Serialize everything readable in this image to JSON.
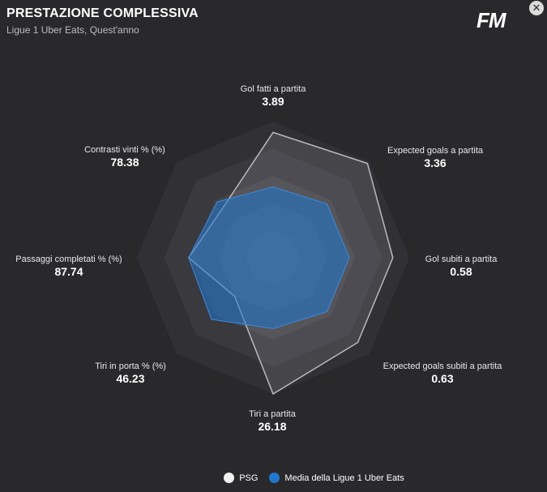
{
  "header": {
    "title": "PRESTAZIONE COMPLESSIVA",
    "subtitle": "Ligue 1 Uber Eats, Quest'anno"
  },
  "logo_text": "FM",
  "close_symbol": "✕",
  "chart_data": {
    "type": "radar",
    "title": "PRESTAZIONE COMPLESSIVA",
    "subtitle": "Ligue 1 Uber Eats, Quest'anno",
    "axes": [
      {
        "label": "Gol fatti a partita",
        "value": "3.89"
      },
      {
        "label": "Expected goals a partita",
        "value": "3.36"
      },
      {
        "label": "Gol subiti a partita",
        "value": "0.58"
      },
      {
        "label": "Expected goals subiti a partita",
        "value": "0.63"
      },
      {
        "label": "Tiri a partita",
        "value": "26.18"
      },
      {
        "label": "Tiri in porta % (%)",
        "value": "46.23"
      },
      {
        "label": "Passaggi completati % (%)",
        "value": "87.74"
      },
      {
        "label": "Contrasti vinti % (%)",
        "value": "78.38"
      }
    ],
    "rings": 5,
    "series": [
      {
        "name": "PSG",
        "color": "#f2f2f2",
        "values": [
          0.92,
          0.98,
          0.88,
          0.88,
          1.0,
          0.4,
          0.62,
          0.52
        ]
      },
      {
        "name": "Media della Ligue 1 Uber Eats",
        "color": "#1f78d1",
        "values": [
          0.52,
          0.56,
          0.56,
          0.56,
          0.52,
          0.64,
          0.62,
          0.58
        ]
      }
    ]
  },
  "legend": {
    "items": [
      {
        "label": "PSG",
        "color": "#f2f2f2"
      },
      {
        "label": "Media della Ligue 1 Uber Eats",
        "color": "#1f78d1"
      }
    ]
  }
}
